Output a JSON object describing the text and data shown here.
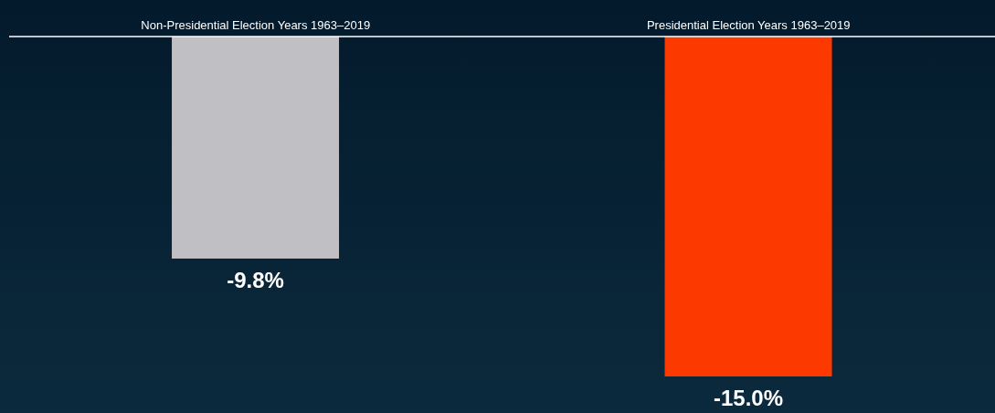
{
  "chart_data": {
    "type": "bar",
    "categories": [
      "Non-Presidential Election Years 1963–2019",
      "Presidential Election Years 1963–2019"
    ],
    "values": [
      -9.8,
      -15.0
    ],
    "colors": [
      "#c0bfc4",
      "#fc3a00"
    ],
    "value_labels": [
      "-9.8%",
      "-15.0%"
    ]
  }
}
